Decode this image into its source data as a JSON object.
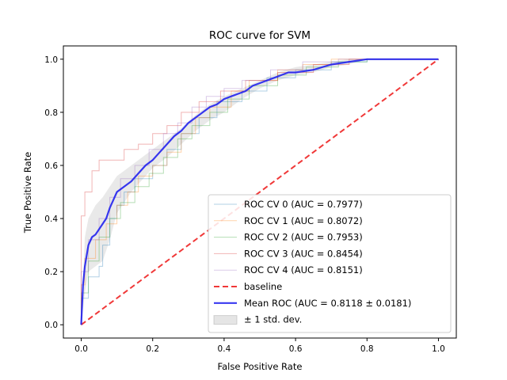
{
  "chart_data": {
    "type": "line",
    "title": "ROC curve for SVM",
    "xlabel": "False Positive Rate",
    "ylabel": "True Positive Rate",
    "xlim": [
      -0.05,
      1.05
    ],
    "ylim": [
      -0.05,
      1.05
    ],
    "xticks": [
      "0.0",
      "0.2",
      "0.4",
      "0.6",
      "0.8",
      "1.0"
    ],
    "yticks": [
      "0.0",
      "0.2",
      "0.4",
      "0.6",
      "0.8",
      "1.0"
    ],
    "grid": false,
    "legend_position": "lower right",
    "series": [
      {
        "name": "ROC CV 0 (AUC = 0.7977)",
        "color": "#1f77b4",
        "style": "thin-step",
        "x": [
          0,
          0.0,
          0.02,
          0.02,
          0.05,
          0.05,
          0.06,
          0.06,
          0.08,
          0.08,
          0.1,
          0.1,
          0.12,
          0.12,
          0.15,
          0.15,
          0.2,
          0.2,
          0.24,
          0.24,
          0.28,
          0.28,
          0.33,
          0.33,
          0.38,
          0.38,
          0.45,
          0.45,
          0.52,
          0.52,
          0.6,
          0.6,
          0.7,
          0.7,
          0.8,
          0.8,
          1.0
        ],
        "y": [
          0,
          0.1,
          0.1,
          0.18,
          0.18,
          0.22,
          0.22,
          0.3,
          0.3,
          0.4,
          0.4,
          0.45,
          0.45,
          0.5,
          0.5,
          0.55,
          0.55,
          0.6,
          0.6,
          0.66,
          0.66,
          0.72,
          0.72,
          0.78,
          0.78,
          0.84,
          0.84,
          0.88,
          0.88,
          0.93,
          0.93,
          0.96,
          0.96,
          0.99,
          0.99,
          1.0,
          1.0
        ]
      },
      {
        "name": "ROC CV 1 (AUC = 0.8072)",
        "color": "#ff7f0e",
        "style": "thin-step",
        "x": [
          0,
          0.0,
          0.01,
          0.01,
          0.04,
          0.04,
          0.07,
          0.07,
          0.1,
          0.1,
          0.13,
          0.13,
          0.16,
          0.16,
          0.2,
          0.2,
          0.24,
          0.24,
          0.28,
          0.28,
          0.32,
          0.32,
          0.36,
          0.36,
          0.42,
          0.42,
          0.47,
          0.47,
          0.55,
          0.55,
          0.62,
          0.62,
          0.7,
          0.7,
          0.8,
          0.8,
          1.0
        ],
        "y": [
          0,
          0.15,
          0.15,
          0.25,
          0.25,
          0.32,
          0.32,
          0.38,
          0.38,
          0.45,
          0.45,
          0.5,
          0.5,
          0.56,
          0.56,
          0.6,
          0.6,
          0.65,
          0.65,
          0.72,
          0.72,
          0.78,
          0.78,
          0.82,
          0.82,
          0.88,
          0.88,
          0.92,
          0.92,
          0.96,
          0.96,
          0.98,
          0.98,
          1.0,
          1.0,
          1.0,
          1.0
        ]
      },
      {
        "name": "ROC CV 2 (AUC = 0.7953)",
        "color": "#2ca02c",
        "style": "thin-step",
        "x": [
          0,
          0.0,
          0.02,
          0.02,
          0.05,
          0.05,
          0.08,
          0.08,
          0.11,
          0.11,
          0.15,
          0.15,
          0.19,
          0.19,
          0.23,
          0.23,
          0.27,
          0.27,
          0.31,
          0.31,
          0.36,
          0.36,
          0.41,
          0.41,
          0.47,
          0.47,
          0.55,
          0.55,
          0.63,
          0.63,
          0.72,
          0.72,
          0.8,
          0.8,
          1.0
        ],
        "y": [
          0,
          0.12,
          0.12,
          0.24,
          0.24,
          0.33,
          0.33,
          0.4,
          0.4,
          0.46,
          0.46,
          0.52,
          0.52,
          0.57,
          0.57,
          0.63,
          0.63,
          0.7,
          0.7,
          0.75,
          0.75,
          0.8,
          0.8,
          0.85,
          0.85,
          0.9,
          0.9,
          0.94,
          0.94,
          0.97,
          0.97,
          0.99,
          0.99,
          1.0,
          1.0
        ]
      },
      {
        "name": "ROC CV 3 (AUC = 0.8454)",
        "color": "#d62728",
        "style": "thin-step",
        "x": [
          0,
          0.0,
          0.01,
          0.01,
          0.03,
          0.03,
          0.05,
          0.05,
          0.08,
          0.08,
          0.12,
          0.12,
          0.16,
          0.16,
          0.2,
          0.2,
          0.24,
          0.24,
          0.28,
          0.28,
          0.33,
          0.33,
          0.39,
          0.39,
          0.46,
          0.46,
          0.55,
          0.55,
          0.65,
          0.65,
          0.75,
          0.75,
          1.0
        ],
        "y": [
          0,
          0.41,
          0.41,
          0.5,
          0.5,
          0.58,
          0.58,
          0.62,
          0.62,
          0.62,
          0.62,
          0.66,
          0.66,
          0.68,
          0.68,
          0.72,
          0.72,
          0.75,
          0.75,
          0.8,
          0.8,
          0.84,
          0.84,
          0.88,
          0.88,
          0.92,
          0.92,
          0.95,
          0.95,
          0.98,
          0.98,
          1.0,
          1.0
        ]
      },
      {
        "name": "ROC CV 4 (AUC = 0.8151)",
        "color": "#9467bd",
        "style": "thin-step",
        "x": [
          0,
          0.0,
          0.02,
          0.02,
          0.05,
          0.05,
          0.08,
          0.08,
          0.11,
          0.11,
          0.15,
          0.15,
          0.19,
          0.19,
          0.23,
          0.23,
          0.27,
          0.27,
          0.31,
          0.31,
          0.35,
          0.35,
          0.4,
          0.4,
          0.45,
          0.45,
          0.53,
          0.53,
          0.62,
          0.62,
          0.72,
          0.72,
          1.0
        ],
        "y": [
          0,
          0.2,
          0.2,
          0.32,
          0.32,
          0.4,
          0.4,
          0.48,
          0.48,
          0.55,
          0.55,
          0.6,
          0.6,
          0.66,
          0.66,
          0.72,
          0.72,
          0.76,
          0.76,
          0.82,
          0.82,
          0.86,
          0.86,
          0.89,
          0.89,
          0.92,
          0.92,
          0.96,
          0.96,
          0.99,
          0.99,
          1.0,
          1.0
        ]
      },
      {
        "name": "baseline",
        "color": "#ee2222",
        "style": "dashed",
        "x": [
          0,
          1
        ],
        "y": [
          0,
          1
        ]
      },
      {
        "name": "Mean ROC (AUC = 0.8118 ± 0.0181)",
        "color": "#2222ee",
        "style": "thick",
        "x": [
          0,
          0.005,
          0.01,
          0.02,
          0.03,
          0.04,
          0.05,
          0.06,
          0.07,
          0.08,
          0.09,
          0.1,
          0.12,
          0.14,
          0.16,
          0.18,
          0.2,
          0.22,
          0.24,
          0.26,
          0.28,
          0.3,
          0.32,
          0.34,
          0.36,
          0.38,
          0.4,
          0.42,
          0.44,
          0.46,
          0.48,
          0.5,
          0.52,
          0.54,
          0.56,
          0.58,
          0.6,
          0.65,
          0.7,
          0.75,
          0.8,
          0.85,
          0.9,
          1.0
        ],
        "y": [
          0,
          0.15,
          0.22,
          0.3,
          0.33,
          0.34,
          0.36,
          0.38,
          0.4,
          0.44,
          0.47,
          0.5,
          0.52,
          0.54,
          0.57,
          0.6,
          0.62,
          0.65,
          0.68,
          0.71,
          0.73,
          0.76,
          0.78,
          0.8,
          0.82,
          0.83,
          0.85,
          0.86,
          0.87,
          0.88,
          0.9,
          0.91,
          0.92,
          0.93,
          0.94,
          0.95,
          0.95,
          0.96,
          0.98,
          0.99,
          1.0,
          1.0,
          1.0,
          1.0
        ]
      }
    ],
    "band": {
      "name": "± 1 std. dev.",
      "color": "#999999",
      "x": [
        0,
        0.01,
        0.02,
        0.04,
        0.06,
        0.08,
        0.1,
        0.12,
        0.14,
        0.16,
        0.18,
        0.2,
        0.24,
        0.28,
        0.32,
        0.36,
        0.4,
        0.45,
        0.5,
        0.55,
        0.6,
        0.65,
        0.7,
        0.75,
        0.8,
        0.9,
        1.0
      ],
      "upper": [
        0,
        0.33,
        0.4,
        0.45,
        0.48,
        0.52,
        0.56,
        0.58,
        0.6,
        0.62,
        0.64,
        0.66,
        0.7,
        0.74,
        0.79,
        0.83,
        0.86,
        0.89,
        0.92,
        0.95,
        0.97,
        0.98,
        0.99,
        1.0,
        1.0,
        1.0,
        1.0
      ],
      "lower": [
        0,
        0.12,
        0.2,
        0.22,
        0.24,
        0.32,
        0.42,
        0.46,
        0.5,
        0.53,
        0.56,
        0.59,
        0.63,
        0.68,
        0.73,
        0.77,
        0.8,
        0.85,
        0.89,
        0.92,
        0.94,
        0.95,
        0.97,
        0.98,
        1.0,
        1.0,
        1.0
      ]
    }
  }
}
